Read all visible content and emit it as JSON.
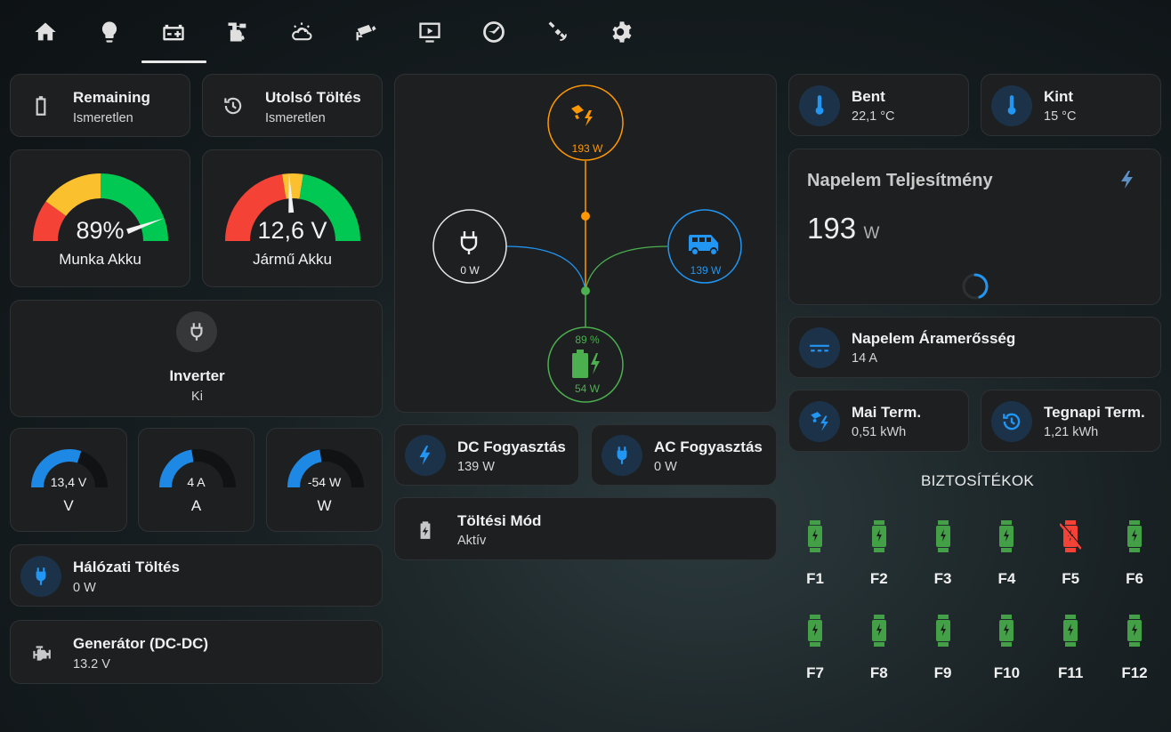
{
  "nav": {
    "tabs": [
      {
        "icon": "home-icon"
      },
      {
        "icon": "lightbulb-icon"
      },
      {
        "icon": "car-battery-icon",
        "active": true
      },
      {
        "icon": "water-pump-icon"
      },
      {
        "icon": "weather-icon"
      },
      {
        "icon": "cctv-icon"
      },
      {
        "icon": "media-icon"
      },
      {
        "icon": "gauge-icon"
      },
      {
        "icon": "satellite-icon"
      },
      {
        "icon": "gear-icon"
      }
    ]
  },
  "left": {
    "remaining": {
      "name": "Remaining",
      "state": "Ismeretlen"
    },
    "last_charge": {
      "name": "Utolsó Töltés",
      "state": "Ismeretlen"
    },
    "gauge_work": {
      "value": "89%",
      "label": "Munka Akku",
      "percent": 89
    },
    "gauge_vehicle": {
      "value": "12,6 V",
      "label": "Jármű Akku",
      "voltage": 12.6
    },
    "inverter": {
      "name": "Inverter",
      "state": "Ki"
    },
    "small_gauges": [
      {
        "value": "13,4 V",
        "label": "V",
        "fraction": 0.6
      },
      {
        "value": "4 A",
        "label": "A",
        "fraction": 0.45
      },
      {
        "value": "-54 W",
        "label": "W",
        "fraction": 0.45
      }
    ],
    "grid_charge": {
      "name": "Hálózati Töltés",
      "state": "0 W"
    },
    "generator": {
      "name": "Generátor (DC-DC)",
      "state": "13.2 V"
    }
  },
  "center": {
    "flow": {
      "solar": "193 W",
      "grid": "0 W",
      "home": "139 W",
      "battery_pct": "89 %",
      "battery_power": "54 W"
    },
    "dc_consumption": {
      "name": "DC Fogyasztás",
      "state": "139 W"
    },
    "ac_consumption": {
      "name": "AC Fogyasztás",
      "state": "0 W"
    },
    "charge_mode": {
      "name": "Töltési Mód",
      "state": "Aktív"
    }
  },
  "right": {
    "inside": {
      "name": "Bent",
      "state": "22,1 °C"
    },
    "outside": {
      "name": "Kint",
      "state": "15 °C"
    },
    "solar_power": {
      "title": "Napelem Teljesítmény",
      "value": "193",
      "unit": "W"
    },
    "solar_current": {
      "name": "Napelem Áramerősség",
      "state": "14 A"
    },
    "today_yield": {
      "name": "Mai Term.",
      "state": "0,51 kWh"
    },
    "yesterday_yield": {
      "name": "Tegnapi Term.",
      "state": "1,21 kWh"
    },
    "fuses_title": "BIZTOSÍTÉKOK",
    "fuses": [
      {
        "name": "F1",
        "status": "ok"
      },
      {
        "name": "F2",
        "status": "ok"
      },
      {
        "name": "F3",
        "status": "ok"
      },
      {
        "name": "F4",
        "status": "ok"
      },
      {
        "name": "F5",
        "status": "blown"
      },
      {
        "name": "F6",
        "status": "ok"
      },
      {
        "name": "F7",
        "status": "ok"
      },
      {
        "name": "F8",
        "status": "ok"
      },
      {
        "name": "F9",
        "status": "ok"
      },
      {
        "name": "F10",
        "status": "ok"
      },
      {
        "name": "F11",
        "status": "ok"
      },
      {
        "name": "F12",
        "status": "ok"
      }
    ]
  },
  "colors": {
    "solar": "#ff9800",
    "grid": "#e8e8e8",
    "home": "#2196f3",
    "battery": "#4caf50",
    "fuse_ok": "#43a047",
    "fuse_blown": "#f44336",
    "gauge_blue": "#1e88e5",
    "gauge_red": "#f44336",
    "gauge_yellow": "#fbc02d",
    "gauge_green": "#00c853"
  }
}
